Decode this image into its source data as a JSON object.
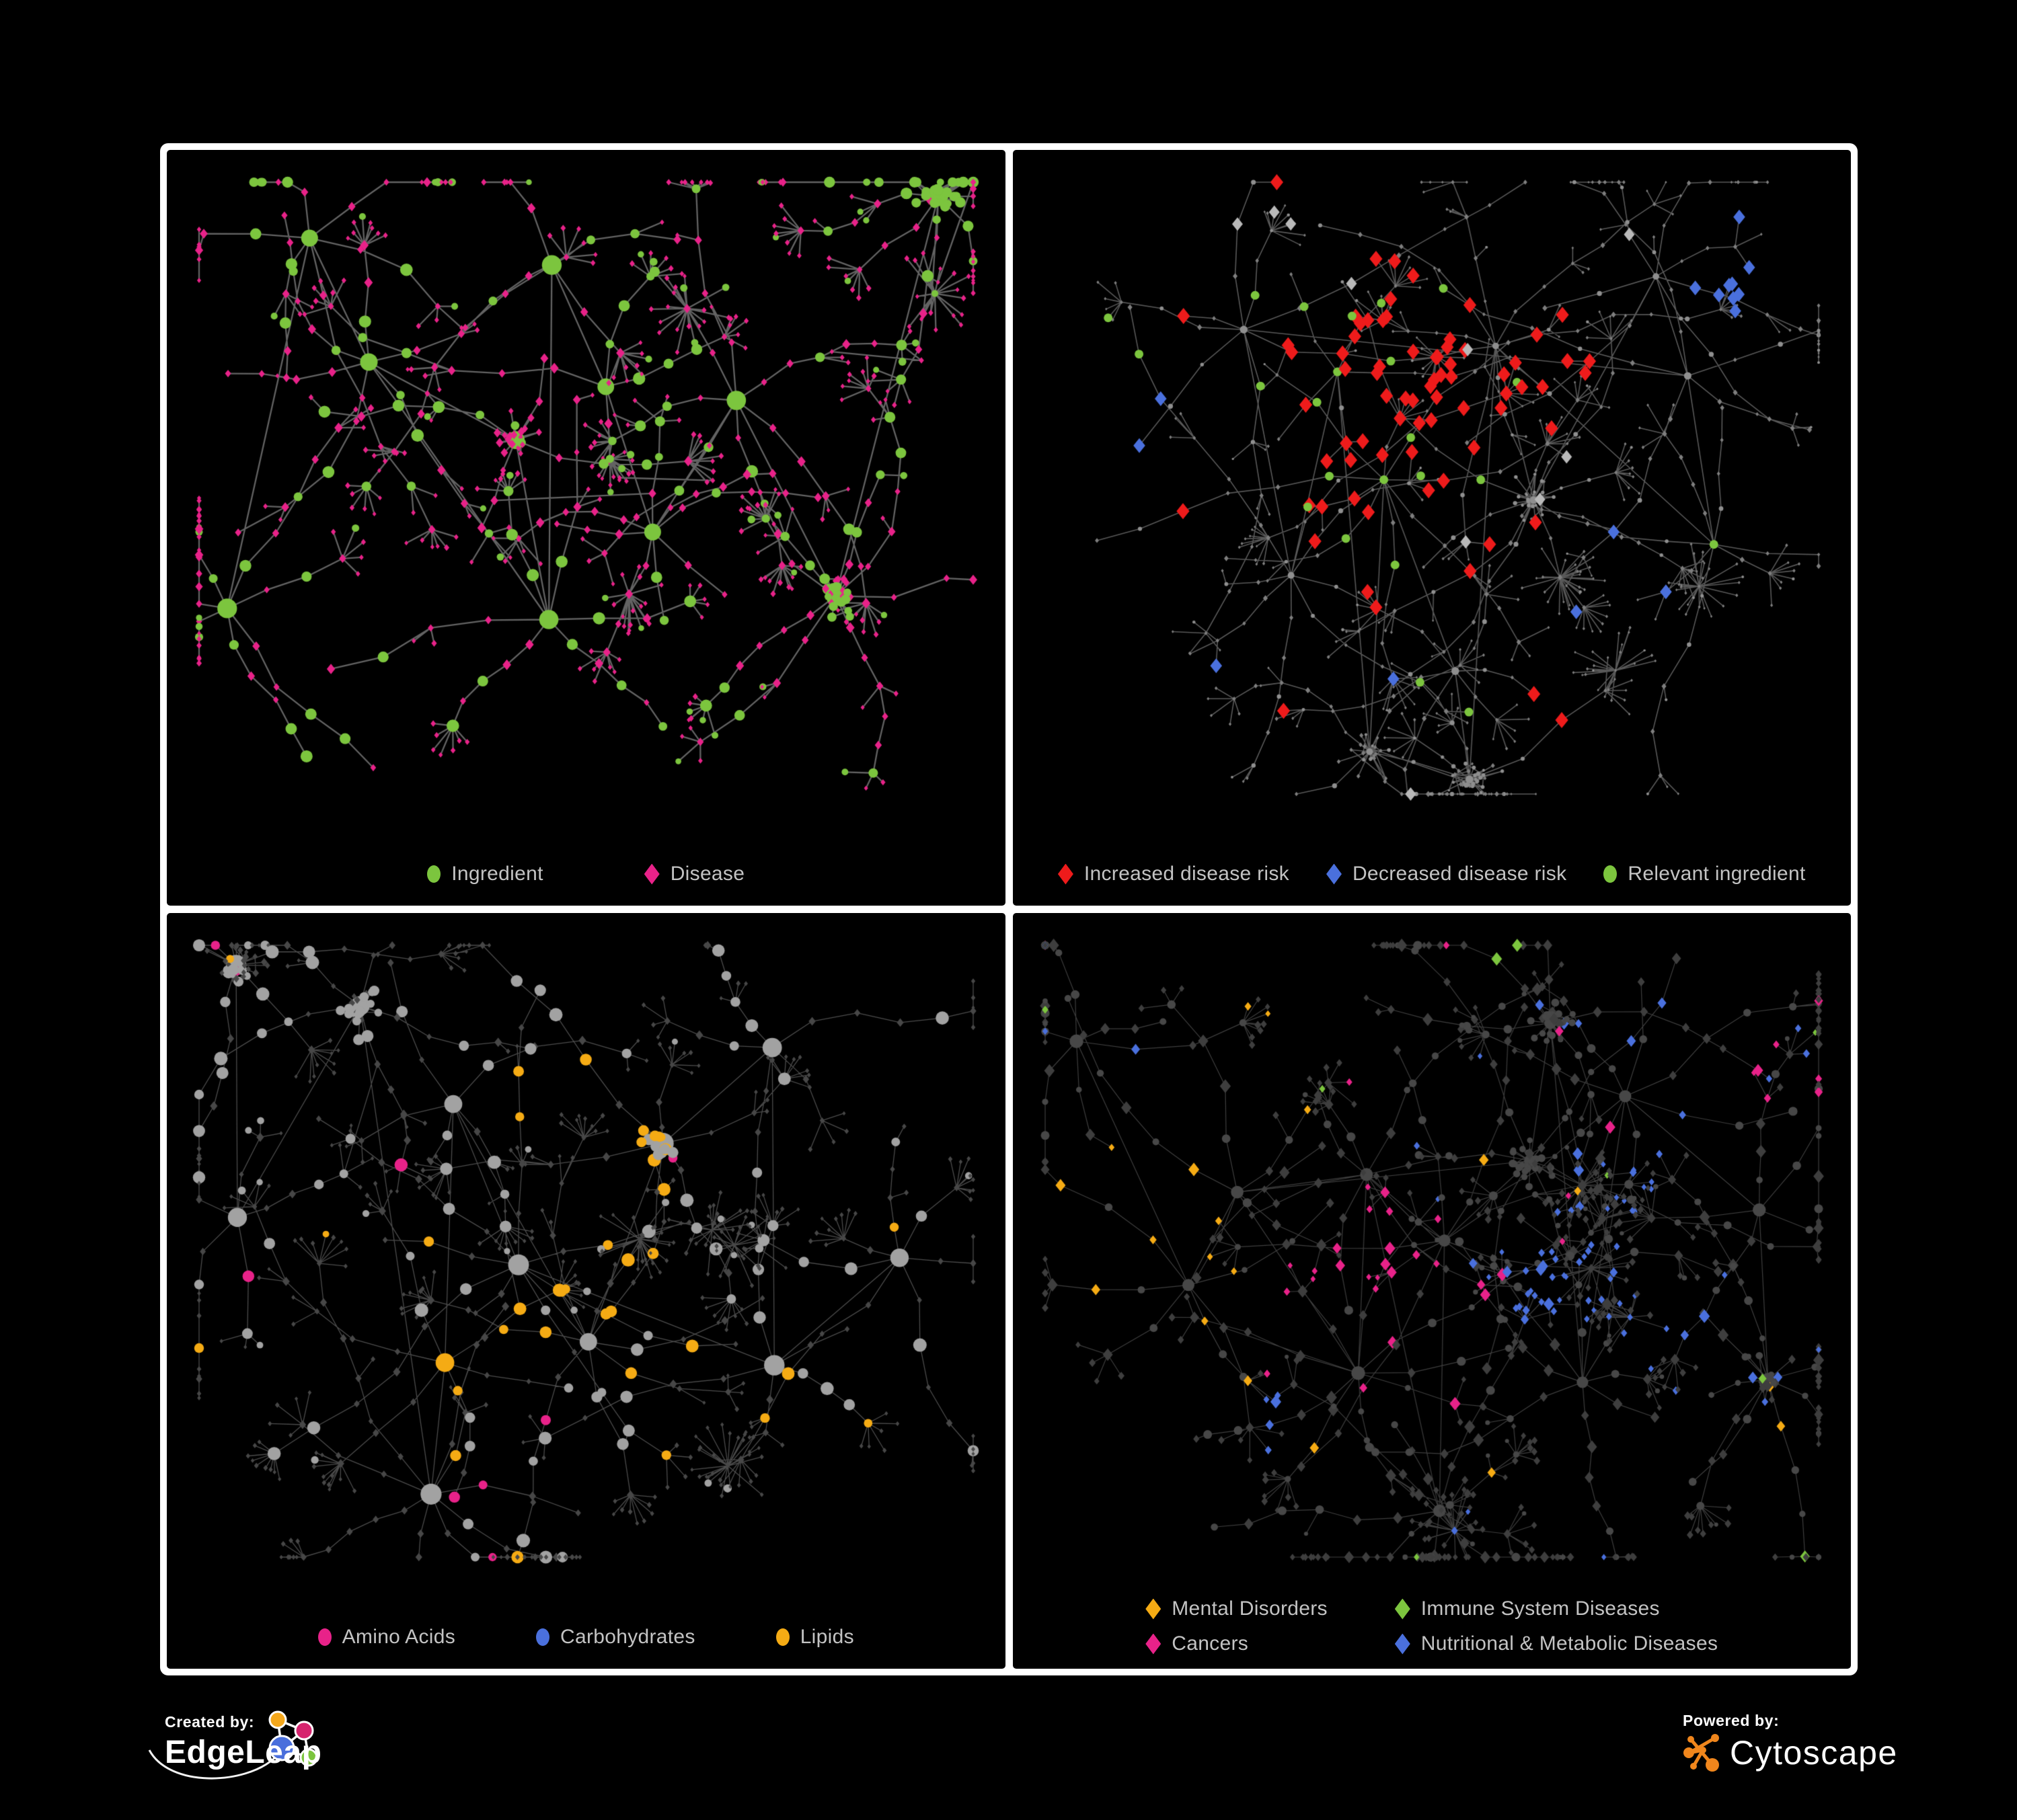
{
  "panels": [
    {
      "name": "ingredient-disease-network",
      "legend": {
        "col_gap": 150,
        "rows": [
          [
            {
              "shape": "circle",
              "color": "#7cc53e",
              "label": "Ingredient"
            },
            {
              "shape": "diamond",
              "color": "#e82289",
              "label": "Disease"
            }
          ]
        ]
      },
      "net": {
        "seed": 20240,
        "hubs": 11,
        "brMin": 4,
        "brMax": 8,
        "dense": 3,
        "stars": 3,
        "chainCircleProb": 0.38,
        "leafCircleProb": 0.12,
        "edge": {
          "color": "#6e6e6e",
          "width": 2.3,
          "alpha": 0.9
        },
        "base": {
          "circle": {
            "color": "#7cc53e",
            "r": 7
          },
          "diamond": {
            "color": "#e82289",
            "r": 6
          }
        },
        "mode": "recolor",
        "classes": []
      }
    },
    {
      "name": "disease-risk-network",
      "legend": {
        "col_gap": 55,
        "rows": [
          [
            {
              "shape": "diamond",
              "color": "#ee1b1b",
              "label": "Increased disease risk"
            },
            {
              "shape": "diamond",
              "color": "#4a70dd",
              "label": "Decreased disease risk"
            },
            {
              "shape": "circle",
              "color": "#7cc53e",
              "label": "Relevant ingredient"
            }
          ]
        ]
      },
      "net": {
        "seed": 7712,
        "hubs": 12,
        "brMin": 5,
        "brMax": 9,
        "dense": 3,
        "stars": 3,
        "chainCircleProb": 0.3,
        "leafCircleProb": 0.1,
        "edge": {
          "color": "#676767",
          "width": 1.6,
          "alpha": 0.85
        },
        "base": {
          "circle": {
            "color": "#8f8f8f",
            "r": 2.8
          },
          "diamond": {
            "color": "#7e7e7e",
            "r": 3.4
          }
        },
        "mode": "highlight",
        "classes": [
          {
            "name": "increased-disease-risk",
            "shape": "d",
            "color": "#ee1b1b",
            "size": 12,
            "base": 0.012,
            "centers": [
              [
                0.33,
                0.33,
                0.1,
                0.55
              ],
              [
                0.48,
                0.36,
                0.1,
                0.5
              ],
              [
                0.43,
                0.5,
                0.08,
                0.35
              ],
              [
                0.63,
                0.3,
                0.05,
                0.3
              ]
            ]
          },
          {
            "name": "decreased-disease-risk",
            "shape": "d",
            "color": "#4a70dd",
            "size": 11,
            "base": 0.004,
            "centers": [
              [
                0.2,
                0.33,
                0.06,
                0.6
              ],
              [
                0.86,
                0.17,
                0.035,
                1.2
              ]
            ]
          },
          {
            "name": "uncertain-risk",
            "shape": "d",
            "color": "#b9b9b9",
            "size": 10,
            "base": 0.006,
            "centers": [
              [
                0.3,
                0.3,
                0.12,
                0.12
              ],
              [
                0.55,
                0.42,
                0.1,
                0.12
              ]
            ]
          },
          {
            "name": "relevant-ingredient",
            "shape": "c",
            "color": "#7cc53e",
            "size": 6.5,
            "base": 0.015,
            "centers": [
              [
                0.38,
                0.36,
                0.16,
                0.45
              ],
              [
                0.2,
                0.3,
                0.1,
                0.3
              ]
            ]
          }
        ]
      }
    },
    {
      "name": "ingredient-classes-network",
      "legend": {
        "col_gap": 120,
        "rows": [
          [
            {
              "shape": "circle",
              "color": "#e82289",
              "label": "Amino Acids"
            },
            {
              "shape": "circle",
              "color": "#4a70dd",
              "label": "Carbohydrates"
            },
            {
              "shape": "circle",
              "color": "#f5ab14",
              "label": "Lipids"
            }
          ]
        ]
      },
      "net": {
        "seed": 5150,
        "hubs": 12,
        "brMin": 5,
        "brMax": 9,
        "dense": 3,
        "stars": 4,
        "chainCircleProb": 0.42,
        "leafCircleProb": 0.08,
        "edge": {
          "color": "#a8a8a8",
          "width": 1.3,
          "alpha": 0.45
        },
        "base": {
          "circle": {
            "color": "#a2a2a2",
            "r": 7.5
          },
          "diamond": {
            "color": "#474747",
            "r": 5.2
          }
        },
        "mode": "recolor",
        "classes": [
          {
            "name": "lipids",
            "shape": "c",
            "color": "#f5ab14",
            "base": 0.05,
            "centers": [
              [
                0.48,
                0.28,
                0.07,
                0.85
              ],
              [
                0.45,
                0.52,
                0.09,
                0.6
              ],
              [
                0.66,
                0.63,
                0.05,
                0.7
              ],
              [
                0.75,
                0.8,
                0.04,
                0.4
              ],
              [
                0.33,
                0.73,
                0.04,
                0.35
              ]
            ]
          },
          {
            "name": "carbohydrates",
            "shape": "c",
            "color": "#4a70dd",
            "base": 0.01,
            "centers": [
              [
                0.6,
                0.54,
                0.035,
                0.9
              ],
              [
                0.42,
                0.3,
                0.05,
                0.25
              ]
            ]
          },
          {
            "name": "amino-acids",
            "shape": "c",
            "color": "#e82289",
            "base": 0.05,
            "centers": [
              [
                0.72,
                0.88,
                0.05,
                0.5
              ],
              [
                0.3,
                0.9,
                0.04,
                0.4
              ],
              [
                0.08,
                0.55,
                0.03,
                0.3
              ]
            ]
          }
        ]
      }
    },
    {
      "name": "disease-classes-network",
      "legend": {
        "col_gap": 100,
        "rows": [
          [
            {
              "shape": "diamond",
              "color": "#f5ab14",
              "label": "Mental Disorders"
            },
            {
              "shape": "diamond",
              "color": "#7cc53e",
              "label": "Immune System Diseases"
            }
          ],
          [
            {
              "shape": "diamond",
              "color": "#e82289",
              "label": "Cancers"
            },
            {
              "shape": "diamond",
              "color": "#4a70dd",
              "label": "Nutritional & Metabolic Diseases"
            }
          ]
        ]
      },
      "net": {
        "seed": 9291,
        "hubs": 13,
        "brMin": 5,
        "brMax": 9,
        "dense": 3,
        "stars": 4,
        "chainCircleProb": 0.4,
        "leafCircleProb": 0.08,
        "edge": {
          "color": "#9a9a9a",
          "width": 1.2,
          "alpha": 0.4
        },
        "base": {
          "circle": {
            "color": "#474747",
            "r": 5
          },
          "diamond": {
            "color": "#3e3e3e",
            "r": 7.6
          }
        },
        "mode": "recolor",
        "classes": [
          {
            "name": "mental-disorders",
            "shape": "d",
            "color": "#f5ab14",
            "base": 0.012,
            "centers": [
              [
                0.14,
                0.44,
                0.1,
                0.95
              ],
              [
                0.3,
                0.09,
                0.05,
                0.45
              ],
              [
                0.44,
                0.91,
                0.03,
                0.4
              ]
            ]
          },
          {
            "name": "cancers",
            "shape": "d",
            "color": "#e82289",
            "base": 0.012,
            "centers": [
              [
                0.44,
                0.53,
                0.08,
                0.8
              ],
              [
                0.92,
                0.26,
                0.045,
                0.6
              ],
              [
                0.2,
                0.88,
                0.04,
                0.4
              ]
            ]
          },
          {
            "name": "nutritional-metabolic-diseases",
            "shape": "d",
            "color": "#4a70dd",
            "base": 0.022,
            "centers": [
              [
                0.62,
                0.55,
                0.06,
                0.85
              ],
              [
                0.77,
                0.32,
                0.07,
                0.5
              ],
              [
                0.68,
                0.12,
                0.06,
                0.5
              ],
              [
                0.86,
                0.62,
                0.05,
                0.5
              ],
              [
                0.3,
                0.72,
                0.04,
                0.35
              ],
              [
                0.12,
                0.18,
                0.04,
                0.3
              ]
            ]
          },
          {
            "name": "immune-system-diseases",
            "shape": "d",
            "color": "#7cc53e",
            "base": 0.015,
            "centers": []
          }
        ]
      }
    }
  ],
  "branding": {
    "created_by_label": "Created by:",
    "edgeleap_name": "EdgeLeap",
    "powered_by_label": "Powered by:",
    "cytoscape_name": "Cytoscape",
    "edgeleap_node_colors": [
      "#f5a81c",
      "#d6246e",
      "#4a6fdc",
      "#7cc53e"
    ],
    "cytoscape_color": "#f0861c",
    "frame_color": "#ffffff",
    "background_color": "#000000",
    "legend_text_color": "#c3c3c3"
  }
}
